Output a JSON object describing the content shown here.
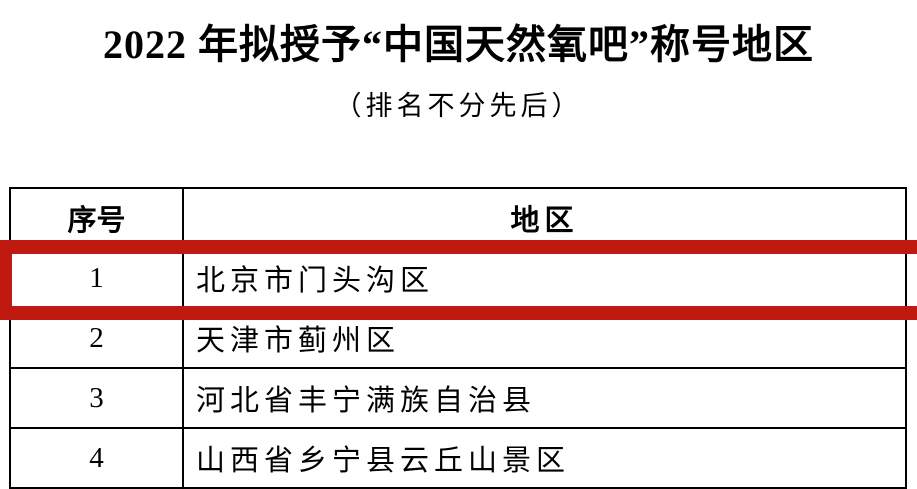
{
  "title": "2022 年拟授予“中国天然氧吧”称号地区",
  "subtitle": "（排名不分先后）",
  "table": {
    "headers": [
      "序号",
      "地区"
    ],
    "rows": [
      {
        "index": "1",
        "region": "北京市门头沟区"
      },
      {
        "index": "2",
        "region": "天津市蓟州区"
      },
      {
        "index": "3",
        "region": "河北省丰宁满族自治县"
      },
      {
        "index": "4",
        "region": "山西省乡宁县云丘山景区"
      }
    ]
  },
  "highlight": {
    "row": "1",
    "color": "#c0190f"
  }
}
